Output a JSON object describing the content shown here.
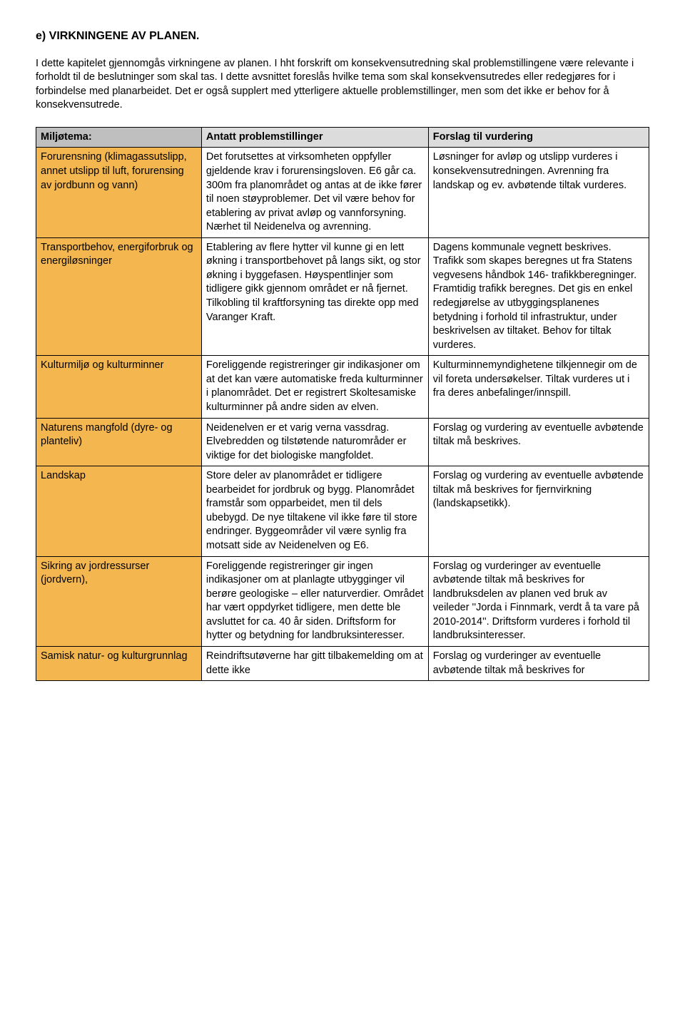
{
  "heading": "e) VIRKNINGENE AV PLANEN.",
  "intro": "I dette kapitelet gjennomgås virkningene av planen. I hht forskrift om konsekvensutredning skal problemstillingene være relevante i forholdt til de beslutninger som skal tas. I dette avsnittet foreslås hvilke tema som skal konsekvensutredes eller redegjøres for i forbindelse med planarbeidet. Det er også supplert med ytterligere aktuelle problemstillinger, men som det ikke er behov for å konsekvensutrede.",
  "columns": {
    "c1": "Miljøtema:",
    "c2": "Antatt problemstillinger",
    "c3": "Forslag til vurdering"
  },
  "rows": [
    {
      "topic": "Forurensning (klimagassutslipp, annet utslipp til luft, forurensing av jordbunn og vann)",
      "problem": "Det forutsettes at virksomheten oppfyller gjeldende krav i forurensingsloven. E6 går ca. 300m fra planområdet og antas at de ikke fører til noen støyproblemer. Det vil være behov for etablering av privat avløp og vannforsyning. Nærhet til Neidenelva og avrenning.",
      "vurdering": "Løsninger for avløp og utslipp vurderes i konsekvensutredningen. Avrenning fra landskap og ev. avbøtende tiltak vurderes."
    },
    {
      "topic": "Transportbehov, energiforbruk og energiløsninger",
      "problem": "Etablering av flere hytter vil kunne gi en lett økning i transportbehovet på langs sikt, og stor økning i byggefasen.\nHøyspentlinjer som tidligere gikk gjennom området er nå fjernet. Tilkobling til kraftforsyning tas direkte opp med Varanger Kraft.",
      "vurdering": "Dagens kommunale vegnett beskrives. Trafikk som skapes beregnes ut fra Statens vegvesens håndbok 146- trafikkberegninger. Framtidig trafikk beregnes. Det gis en enkel redegjørelse av utbyggingsplanenes betydning i forhold til infrastruktur, under beskrivelsen av tiltaket.\nBehov for tiltak vurderes."
    },
    {
      "topic": "Kulturmiljø og kulturminner",
      "problem": "Foreliggende registreringer gir indikasjoner om at det kan være automatiske freda kulturminner i planområdet. Det er registrert Skoltesamiske kulturminner på andre siden av elven.",
      "vurdering": "Kulturminnemyndighetene tilkjennegir om de vil foreta undersøkelser. Tiltak vurderes ut i fra deres anbefalinger/innspill."
    },
    {
      "topic": "Naturens mangfold (dyre- og planteliv)",
      "problem": "Neidenelven er et varig verna vassdrag. Elvebredden og tilstøtende naturområder er viktige for det biologiske mangfoldet.",
      "vurdering": "Forslag og vurdering av eventuelle avbøtende tiltak må beskrives."
    },
    {
      "topic": "Landskap",
      "problem": "Store deler av planområdet er tidligere bearbeidet for jordbruk og bygg. Planområdet framstår som opparbeidet, men til dels ubebygd. De nye tiltakene vil ikke føre til store endringer. Byggeområder vil være synlig fra motsatt side av Neidenelven og E6.",
      "vurdering": "Forslag og vurdering av eventuelle avbøtende tiltak må beskrives for fjernvirkning (landskapsetikk)."
    },
    {
      "topic": "Sikring av jordressurser (jordvern),",
      "problem": "Foreliggende registreringer gir ingen indikasjoner om at planlagte utbygginger vil berøre geologiske – eller naturverdier. Området har vært oppdyrket tidligere, men dette ble avsluttet for ca. 40 år siden. Driftsform for hytter og betydning for landbruksinteresser.",
      "vurdering": "Forslag og vurderinger av eventuelle avbøtende tiltak må beskrives for landbruksdelen av planen ved bruk av veileder ''Jorda i Finnmark, verdt å ta vare på 2010-2014''. Driftsform vurderes i forhold til landbruksinteresser."
    },
    {
      "topic": "Samisk natur- og kulturgrunnlag",
      "problem": "Reindriftsutøverne har gitt tilbakemelding om at dette ikke",
      "vurdering": "Forslag og vurderinger av eventuelle avbøtende tiltak må beskrives for"
    }
  ]
}
